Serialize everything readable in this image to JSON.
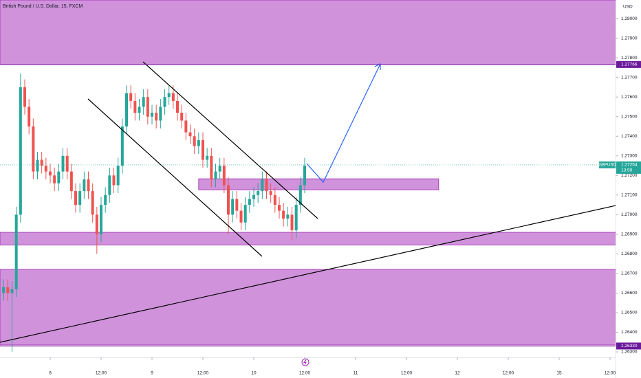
{
  "chart_data": {
    "type": "candlestick",
    "title": "British Pound / U.S. Dollar, 15, FXCM",
    "currency": "USD",
    "xlim": [
      0.16,
      145.3
    ],
    "xticks": [
      {
        "value": 12,
        "label": "8"
      },
      {
        "value": 24,
        "label": "12:00"
      },
      {
        "value": 36,
        "label": "9"
      },
      {
        "value": 48,
        "label": "12:00"
      },
      {
        "value": 60,
        "label": "10"
      },
      {
        "value": 72,
        "label": "12:00"
      },
      {
        "value": 84,
        "label": "11"
      },
      {
        "value": 96,
        "label": "12:00"
      },
      {
        "value": 108,
        "label": "12"
      },
      {
        "value": 120,
        "label": "12:00"
      },
      {
        "value": 132,
        "label": "15"
      },
      {
        "value": 144,
        "label": "12:00"
      }
    ],
    "ylim": [
      1.26272,
      1.28095
    ],
    "yticks": [
      {
        "value": 1.28,
        "label": "1.28000"
      },
      {
        "value": 1.279,
        "label": "1.27900"
      },
      {
        "value": 1.278,
        "label": "1.27800"
      },
      {
        "value": 1.277,
        "label": "1.27700"
      },
      {
        "value": 1.276,
        "label": "1.27600"
      },
      {
        "value": 1.275,
        "label": "1.27500"
      },
      {
        "value": 1.274,
        "label": "1.27400"
      },
      {
        "value": 1.273,
        "label": "1.27300"
      },
      {
        "value": 1.272,
        "label": "1.27200"
      },
      {
        "value": 1.271,
        "label": "1.27100"
      },
      {
        "value": 1.27,
        "label": "1.27000"
      },
      {
        "value": 1.269,
        "label": "1.26900"
      },
      {
        "value": 1.268,
        "label": "1.26800"
      },
      {
        "value": 1.267,
        "label": "1.26700"
      },
      {
        "value": 1.266,
        "label": "1.26600"
      },
      {
        "value": 1.265,
        "label": "1.26500"
      },
      {
        "value": 1.264,
        "label": "1.26400"
      },
      {
        "value": 1.263,
        "label": "1.26300"
      }
    ],
    "up_color": "#26a69a",
    "down_color": "#ef5350",
    "zone_color": "#d092db",
    "x": [
      1,
      2,
      3,
      4,
      5,
      6,
      7,
      8,
      9,
      10,
      11,
      12,
      13,
      14,
      15,
      16,
      17,
      18,
      19,
      20,
      21,
      22,
      23,
      24,
      25,
      26,
      27,
      28,
      29,
      30,
      31,
      32,
      33,
      34,
      35,
      36,
      37,
      38,
      39,
      40,
      41,
      42,
      43,
      44,
      45,
      46,
      47,
      48,
      49,
      50,
      51,
      52,
      53,
      54,
      55,
      56,
      57,
      58,
      59,
      60,
      61,
      62,
      63,
      64,
      65,
      66,
      67,
      68,
      69,
      70,
      71,
      72
    ],
    "open": [
      1.266,
      1.2663,
      1.266,
      1.2662,
      1.27,
      1.2765,
      1.2755,
      1.2745,
      1.2722,
      1.2728,
      1.2725,
      1.2722,
      1.272,
      1.2716,
      1.2722,
      1.273,
      1.2722,
      1.2712,
      1.2705,
      1.2712,
      1.2718,
      1.2712,
      1.27,
      1.269,
      1.2705,
      1.271,
      1.272,
      1.2715,
      1.2725,
      1.2745,
      1.2762,
      1.2758,
      1.2752,
      1.2755,
      1.276,
      1.275,
      1.2752,
      1.2748,
      1.2755,
      1.276,
      1.2762,
      1.2758,
      1.2752,
      1.2748,
      1.2742,
      1.274,
      1.2735,
      1.2738,
      1.2728,
      1.273,
      1.2718,
      1.2722,
      1.2725,
      1.2715,
      1.27,
      1.2708,
      1.2702,
      1.2696,
      1.2705,
      1.2708,
      1.271,
      1.2712,
      1.2718,
      1.2712,
      1.271,
      1.2705,
      1.2702,
      1.2698,
      1.27,
      1.2692,
      1.2705,
      1.2715
    ],
    "high": [
      1.2667,
      1.2667,
      1.2666,
      1.2704,
      1.2772,
      1.2769,
      1.2759,
      1.2749,
      1.2732,
      1.2732,
      1.2729,
      1.2726,
      1.2724,
      1.2726,
      1.2734,
      1.2734,
      1.2726,
      1.2716,
      1.2716,
      1.2722,
      1.2722,
      1.2716,
      1.2704,
      1.2709,
      1.2714,
      1.2724,
      1.2724,
      1.2729,
      1.2749,
      1.2766,
      1.2766,
      1.2762,
      1.2759,
      1.2764,
      1.2764,
      1.2756,
      1.2756,
      1.2759,
      1.2764,
      1.2766,
      1.2766,
      1.2762,
      1.2756,
      1.2752,
      1.2746,
      1.2744,
      1.2742,
      1.2742,
      1.2734,
      1.2734,
      1.2726,
      1.2729,
      1.2729,
      1.2719,
      1.2712,
      1.2712,
      1.2706,
      1.2709,
      1.2712,
      1.2714,
      1.2716,
      1.2722,
      1.2722,
      1.2716,
      1.2714,
      1.2709,
      1.2706,
      1.2704,
      1.2704,
      1.2709,
      1.2719,
      1.2729
    ],
    "low": [
      1.2656,
      1.2656,
      1.263,
      1.2658,
      1.2696,
      1.2751,
      1.2741,
      1.2718,
      1.2718,
      1.2721,
      1.2718,
      1.2716,
      1.2712,
      1.2712,
      1.2718,
      1.2718,
      1.2708,
      1.2701,
      1.2701,
      1.2708,
      1.2708,
      1.2696,
      1.268,
      1.2686,
      1.2701,
      1.2706,
      1.2711,
      1.2711,
      1.2721,
      1.2741,
      1.2754,
      1.2748,
      1.2748,
      1.2751,
      1.2746,
      1.2746,
      1.2744,
      1.2744,
      1.2751,
      1.2756,
      1.2754,
      1.2748,
      1.2744,
      1.2738,
      1.2736,
      1.2731,
      1.2731,
      1.2724,
      1.2724,
      1.2714,
      1.2714,
      1.2718,
      1.2711,
      1.269,
      1.2696,
      1.2698,
      1.2692,
      1.2692,
      1.2701,
      1.2704,
      1.2706,
      1.2708,
      1.2708,
      1.2706,
      1.2701,
      1.2698,
      1.2694,
      1.2694,
      1.2687,
      1.2688,
      1.2701,
      1.2711
    ],
    "close": [
      1.2663,
      1.266,
      1.2662,
      1.27,
      1.2765,
      1.2755,
      1.2745,
      1.2722,
      1.2728,
      1.2725,
      1.2722,
      1.272,
      1.2716,
      1.2722,
      1.273,
      1.2722,
      1.2712,
      1.2705,
      1.2712,
      1.2718,
      1.2712,
      1.27,
      1.269,
      1.2705,
      1.271,
      1.272,
      1.2715,
      1.2725,
      1.2745,
      1.2762,
      1.2758,
      1.2752,
      1.2755,
      1.276,
      1.275,
      1.2752,
      1.2748,
      1.2755,
      1.276,
      1.2762,
      1.2758,
      1.2752,
      1.2748,
      1.2742,
      1.274,
      1.2735,
      1.2738,
      1.2728,
      1.273,
      1.2718,
      1.2722,
      1.2725,
      1.2715,
      1.27,
      1.2708,
      1.2702,
      1.2696,
      1.2705,
      1.2708,
      1.271,
      1.2712,
      1.2718,
      1.2712,
      1.271,
      1.2705,
      1.2702,
      1.2698,
      1.27,
      1.2692,
      1.2705,
      1.2715,
      1.2725
    ],
    "zones": [
      {
        "y": [
          1.27766,
          1.28095
        ]
      },
      {
        "y": [
          1.26845,
          1.2691
        ]
      },
      {
        "y": [
          1.26335,
          1.26721
        ]
      },
      {
        "y": [
          1.27127,
          1.27183
        ],
        "x": [
          47.0,
          103.6
        ]
      }
    ],
    "price_lines": [
      {
        "value": 1.27766,
        "label": "1.27766"
      },
      {
        "value": 1.2633,
        "label": "1.26330"
      }
    ],
    "last_price": {
      "symbol": "GBPUSD",
      "value": 1.27254,
      "label": "1.27254",
      "countdown": "13:59"
    }
  }
}
